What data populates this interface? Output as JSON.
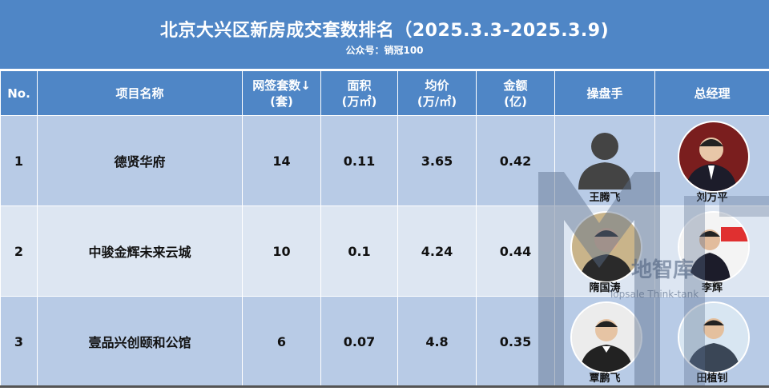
{
  "header": {
    "title": "北京大兴区新房成交套数排名（2025.3.3-2025.3.9)",
    "subtitle": "公众号：销冠100"
  },
  "columns": [
    "No.",
    "项目名称",
    "网签套数↓",
    "(套)",
    "面积",
    "(万㎡)",
    "均价",
    "(万/㎡)",
    "金额",
    "(亿)",
    "操盘手",
    "总经理"
  ],
  "rows": [
    {
      "no": "1",
      "project": "德贤华府",
      "units": "14",
      "area": "0.11",
      "price": "3.65",
      "amount": "0.42",
      "operator": "王腾飞",
      "gm": "刘万平"
    },
    {
      "no": "2",
      "project": "中骏金辉未来云城",
      "units": "10",
      "area": "0.1",
      "price": "4.24",
      "amount": "0.44",
      "operator": "隋国涛",
      "gm": "李辉"
    },
    {
      "no": "3",
      "project": "壹品兴创颐和公馆",
      "units": "6",
      "area": "0.07",
      "price": "4.8",
      "amount": "0.35",
      "operator": "覃鹏飞",
      "gm": "田植钊"
    }
  ],
  "watermark": {
    "cn": "地智库",
    "en": "Topsale Think-tank"
  },
  "colors": {
    "header": "#4f86c6",
    "row_dark": "#b8cbe6",
    "row_light": "#dde6f2"
  }
}
